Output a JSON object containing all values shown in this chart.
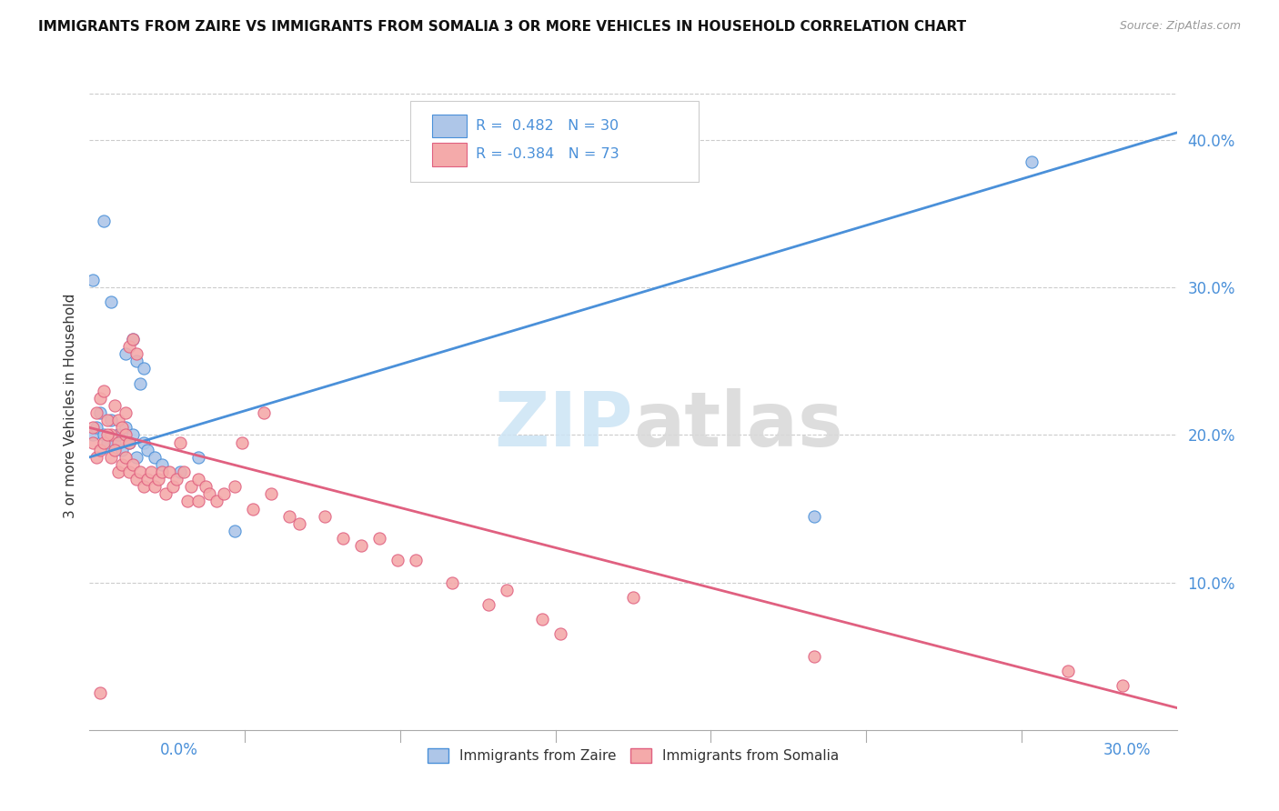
{
  "title": "IMMIGRANTS FROM ZAIRE VS IMMIGRANTS FROM SOMALIA 3 OR MORE VEHICLES IN HOUSEHOLD CORRELATION CHART",
  "source": "Source: ZipAtlas.com",
  "ylabel": "3 or more Vehicles in Household",
  "x_min": 0.0,
  "x_max": 0.3,
  "y_min": 0.0,
  "y_max": 0.44,
  "zaire_R": 0.482,
  "zaire_N": 30,
  "somalia_R": -0.384,
  "somalia_N": 73,
  "zaire_color": "#aec6e8",
  "somalia_color": "#f4aaaa",
  "zaire_line_color": "#4a90d9",
  "somalia_line_color": "#e06080",
  "legend_R_color": "#4a90d9",
  "background_color": "#ffffff",
  "zaire_line_x0": 0.0,
  "zaire_line_y0": 0.185,
  "zaire_line_x1": 0.3,
  "zaire_line_y1": 0.405,
  "somalia_line_x0": 0.0,
  "somalia_line_y0": 0.205,
  "somalia_line_x1": 0.3,
  "somalia_line_y1": 0.015,
  "zaire_points": [
    [
      0.001,
      0.305
    ],
    [
      0.004,
      0.345
    ],
    [
      0.006,
      0.29
    ],
    [
      0.01,
      0.255
    ],
    [
      0.012,
      0.265
    ],
    [
      0.013,
      0.25
    ],
    [
      0.014,
      0.235
    ],
    [
      0.015,
      0.245
    ],
    [
      0.001,
      0.2
    ],
    [
      0.002,
      0.205
    ],
    [
      0.003,
      0.215
    ],
    [
      0.004,
      0.2
    ],
    [
      0.005,
      0.195
    ],
    [
      0.006,
      0.21
    ],
    [
      0.007,
      0.195
    ],
    [
      0.008,
      0.2
    ],
    [
      0.009,
      0.19
    ],
    [
      0.01,
      0.205
    ],
    [
      0.011,
      0.195
    ],
    [
      0.012,
      0.2
    ],
    [
      0.013,
      0.185
    ],
    [
      0.015,
      0.195
    ],
    [
      0.016,
      0.19
    ],
    [
      0.018,
      0.185
    ],
    [
      0.02,
      0.18
    ],
    [
      0.025,
      0.175
    ],
    [
      0.03,
      0.185
    ],
    [
      0.04,
      0.135
    ],
    [
      0.2,
      0.145
    ],
    [
      0.26,
      0.385
    ]
  ],
  "somalia_points": [
    [
      0.001,
      0.205
    ],
    [
      0.002,
      0.215
    ],
    [
      0.003,
      0.225
    ],
    [
      0.004,
      0.23
    ],
    [
      0.005,
      0.21
    ],
    [
      0.006,
      0.2
    ],
    [
      0.007,
      0.22
    ],
    [
      0.008,
      0.195
    ],
    [
      0.008,
      0.21
    ],
    [
      0.009,
      0.205
    ],
    [
      0.01,
      0.2
    ],
    [
      0.01,
      0.215
    ],
    [
      0.011,
      0.195
    ],
    [
      0.011,
      0.26
    ],
    [
      0.012,
      0.265
    ],
    [
      0.013,
      0.255
    ],
    [
      0.001,
      0.195
    ],
    [
      0.002,
      0.185
    ],
    [
      0.003,
      0.19
    ],
    [
      0.004,
      0.195
    ],
    [
      0.005,
      0.2
    ],
    [
      0.006,
      0.185
    ],
    [
      0.007,
      0.19
    ],
    [
      0.008,
      0.175
    ],
    [
      0.009,
      0.18
    ],
    [
      0.01,
      0.185
    ],
    [
      0.011,
      0.175
    ],
    [
      0.012,
      0.18
    ],
    [
      0.013,
      0.17
    ],
    [
      0.014,
      0.175
    ],
    [
      0.015,
      0.165
    ],
    [
      0.016,
      0.17
    ],
    [
      0.017,
      0.175
    ],
    [
      0.018,
      0.165
    ],
    [
      0.019,
      0.17
    ],
    [
      0.02,
      0.175
    ],
    [
      0.021,
      0.16
    ],
    [
      0.022,
      0.175
    ],
    [
      0.023,
      0.165
    ],
    [
      0.024,
      0.17
    ],
    [
      0.025,
      0.195
    ],
    [
      0.026,
      0.175
    ],
    [
      0.027,
      0.155
    ],
    [
      0.028,
      0.165
    ],
    [
      0.03,
      0.17
    ],
    [
      0.03,
      0.155
    ],
    [
      0.032,
      0.165
    ],
    [
      0.033,
      0.16
    ],
    [
      0.035,
      0.155
    ],
    [
      0.037,
      0.16
    ],
    [
      0.04,
      0.165
    ],
    [
      0.042,
      0.195
    ],
    [
      0.045,
      0.15
    ],
    [
      0.048,
      0.215
    ],
    [
      0.05,
      0.16
    ],
    [
      0.055,
      0.145
    ],
    [
      0.058,
      0.14
    ],
    [
      0.065,
      0.145
    ],
    [
      0.07,
      0.13
    ],
    [
      0.075,
      0.125
    ],
    [
      0.08,
      0.13
    ],
    [
      0.085,
      0.115
    ],
    [
      0.09,
      0.115
    ],
    [
      0.1,
      0.1
    ],
    [
      0.11,
      0.085
    ],
    [
      0.115,
      0.095
    ],
    [
      0.125,
      0.075
    ],
    [
      0.13,
      0.065
    ],
    [
      0.15,
      0.09
    ],
    [
      0.2,
      0.05
    ],
    [
      0.27,
      0.04
    ],
    [
      0.285,
      0.03
    ],
    [
      0.003,
      0.025
    ]
  ]
}
